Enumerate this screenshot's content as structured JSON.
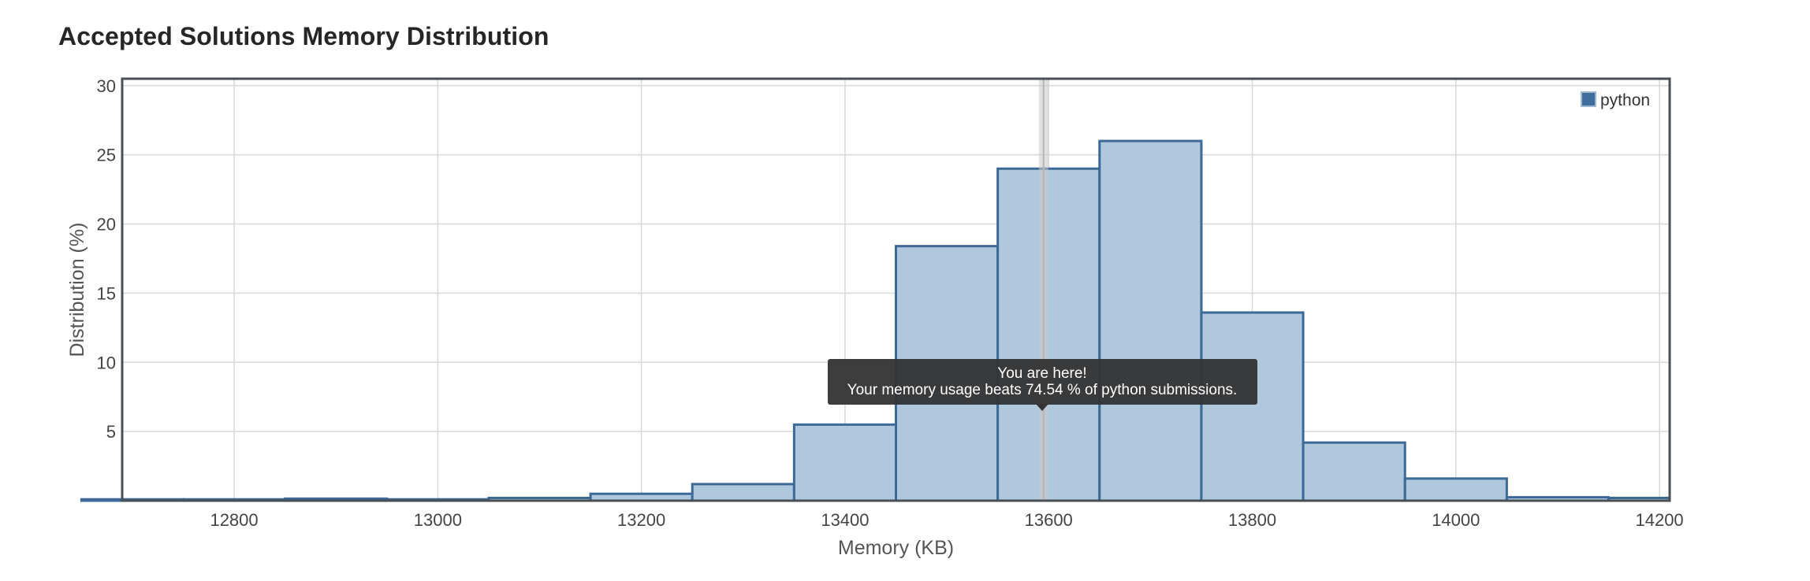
{
  "page": {
    "title": "Accepted Solutions Memory Distribution"
  },
  "tooltip": {
    "line1": "You are here!",
    "line2": "Your memory usage beats 74.54 % of python submissions."
  },
  "colors": {
    "bar_fill": "#b0c8dd",
    "bar_stroke": "#3c6995",
    "grid": "#d9d9d9",
    "frame": "#4a4f55",
    "marker": "#c9c9c9",
    "tooltip_bg": "#333333",
    "legend_swatch": "#3f6e9c"
  },
  "chart_data": {
    "type": "bar",
    "title": "Accepted Solutions Memory Distribution",
    "xlabel": "Memory (KB)",
    "ylabel": "Distribution (%)",
    "xlim": [
      12690,
      14210
    ],
    "ylim": [
      0,
      30.5
    ],
    "x_ticks": [
      12800,
      13000,
      13200,
      13400,
      13600,
      13800,
      14000,
      14200
    ],
    "y_ticks": [
      5,
      10,
      15,
      20,
      25,
      30
    ],
    "bin_width": 100,
    "grid": true,
    "legend_position": "top-right",
    "marker_x": 13595,
    "series": [
      {
        "name": "python",
        "bins": [
          {
            "x": 12700,
            "value": 0.1
          },
          {
            "x": 12800,
            "value": 0.1
          },
          {
            "x": 12900,
            "value": 0.15
          },
          {
            "x": 13000,
            "value": 0.1
          },
          {
            "x": 13100,
            "value": 0.2
          },
          {
            "x": 13200,
            "value": 0.5
          },
          {
            "x": 13300,
            "value": 1.2
          },
          {
            "x": 13400,
            "value": 5.5
          },
          {
            "x": 13500,
            "value": 18.4
          },
          {
            "x": 13600,
            "value": 24.0
          },
          {
            "x": 13700,
            "value": 26.0
          },
          {
            "x": 13800,
            "value": 13.6
          },
          {
            "x": 13900,
            "value": 4.2
          },
          {
            "x": 14000,
            "value": 1.6
          },
          {
            "x": 14100,
            "value": 0.25
          },
          {
            "x": 14200,
            "value": 0.2
          }
        ]
      }
    ]
  }
}
